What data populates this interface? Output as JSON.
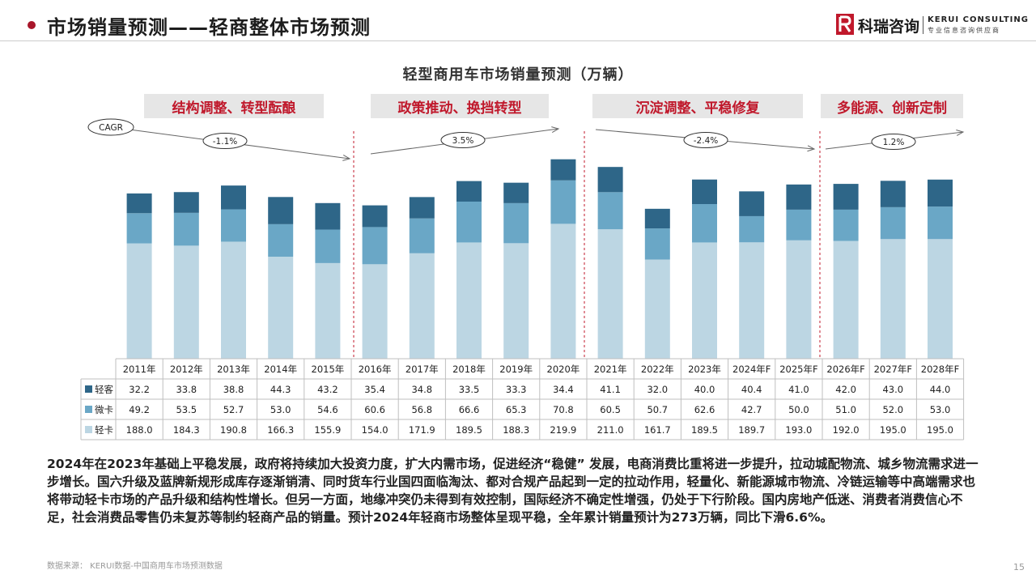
{
  "header": {
    "title": "市场销量预测——轻商整体市场预测",
    "logo_cn": "科瑞咨询",
    "logo_en": "KERUI CONSULTING",
    "logo_sub": "专业信息咨询供应商"
  },
  "phases": [
    {
      "label": "结构调整、转型酝酿",
      "cagr": "-1.1%"
    },
    {
      "label": "政策推动、换挡转型",
      "cagr": "3.5%"
    },
    {
      "label": "沉淀调整、平稳修复",
      "cagr": "-2.4%"
    },
    {
      "label": "多能源、创新定制",
      "cagr": "1.2%"
    }
  ],
  "cagr_label": "CAGR",
  "chart_data": {
    "type": "bar",
    "stacked": true,
    "title": "轻型商用车市场销量预测（万辆）",
    "categories": [
      "2011年",
      "2012年",
      "2013年",
      "2014年",
      "2015年",
      "2016年",
      "2017年",
      "2018年",
      "2019年",
      "2020年",
      "2021年",
      "2022年",
      "2023年",
      "2024年F",
      "2025年F",
      "2026年F",
      "2027年F",
      "2028年F"
    ],
    "series": [
      {
        "name": "轻卡",
        "color": "#bcd6e3",
        "values": [
          188.0,
          184.3,
          190.8,
          166.3,
          155.9,
          154.0,
          171.9,
          189.5,
          188.3,
          219.9,
          211.0,
          161.7,
          189.5,
          189.7,
          193.0,
          192.0,
          195.0,
          195.0
        ]
      },
      {
        "name": "微卡",
        "color": "#6aa7c6",
        "values": [
          49.2,
          53.5,
          52.7,
          53.0,
          54.6,
          60.6,
          56.8,
          66.6,
          65.3,
          70.8,
          60.5,
          50.7,
          62.6,
          42.7,
          50.0,
          51.0,
          52.0,
          53.0
        ]
      },
      {
        "name": "轻客",
        "color": "#2e6688",
        "values": [
          32.2,
          33.8,
          38.8,
          44.3,
          43.2,
          35.4,
          34.8,
          33.5,
          33.3,
          34.4,
          41.1,
          32.0,
          40.0,
          40.4,
          41.0,
          42.0,
          43.0,
          44.0
        ]
      }
    ],
    "table_row_order": [
      "轻客",
      "微卡",
      "轻卡"
    ],
    "ylim": [
      0,
      330
    ]
  },
  "description": "2024年在2023年基础上平稳发展，政府将持续加大投资力度，扩大内需市场，促进经济“稳健” 发展，电商消费比重将进一步提升，拉动城配物流、城乡物流需求进一步增长。国六升级及蓝牌新规形成库存逐渐销清、同时货车行业国四面临淘汰、都对合规产品起到一定的拉动作用，轻量化、新能源城市物流、冷链运输等中高端需求也将带动轻卡市场的产品升级和结构性增长。但另一方面，地缘冲突仍未得到有效控制，国际经济不确定性增强，仍处于下行阶段。国内房地产低迷、消费者消费信心不足，社会消费品零售仍未复苏等制约轻商产品的销量。预计2024年轻商市场整体呈现平稳，全年累计销量预计为273万辆，同比下滑6.6%。",
  "source": "数据来源：  KERUI数据-中国商用车市场预测数据",
  "page_number": "15"
}
